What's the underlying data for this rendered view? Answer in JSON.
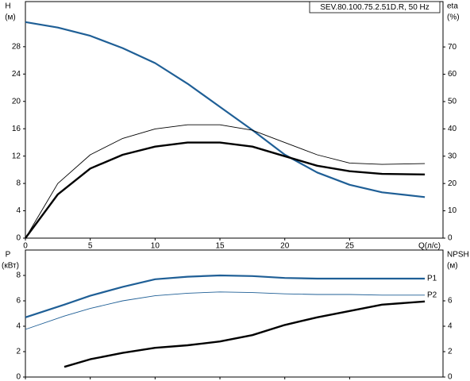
{
  "chart_data": [
    {
      "type": "line",
      "title": "SEV.80.100.75.2.51D.R, 50 Hz",
      "ylabel": "H",
      "yunit": "(м)",
      "y2label": "eta",
      "y2unit": "(%)",
      "xlabel": "Q(л/с)",
      "x": [
        0,
        2.5,
        5,
        7.5,
        10,
        12.5,
        15,
        17.5,
        20,
        22.5,
        25,
        27.5,
        30.8
      ],
      "xlim": [
        0,
        32.2
      ],
      "xticks": [
        0,
        5,
        10,
        15,
        20,
        25
      ],
      "ylim": [
        0,
        34.6
      ],
      "yticks": [
        0,
        4,
        8,
        12,
        16,
        20,
        24,
        28
      ],
      "y2lim": [
        0,
        86.6
      ],
      "y2ticks": [
        0,
        10,
        20,
        30,
        40,
        50,
        60,
        70
      ],
      "series": [
        {
          "color": "#1f5f96",
          "width": 2.2,
          "values": [
            31.6,
            30.8,
            29.6,
            27.8,
            25.6,
            22.6,
            19.2,
            15.8,
            12.2,
            9.6,
            7.8,
            6.7,
            6.0
          ]
        },
        {
          "color": "#000000",
          "width": 0.9,
          "axis": "y2",
          "values": [
            0,
            20,
            30.5,
            36.5,
            40,
            41.5,
            41.5,
            39.5,
            35,
            30.5,
            27.5,
            27,
            27.3
          ]
        },
        {
          "color": "#000000",
          "width": 2.4,
          "axis": "y2",
          "values": [
            0,
            16,
            25.5,
            30.5,
            33.5,
            35,
            35,
            33.5,
            30,
            26.5,
            24.5,
            23.5,
            23.3
          ]
        }
      ]
    },
    {
      "type": "line",
      "ylabel": "P",
      "yunit": "(кВт)",
      "y2label": "NPSH",
      "y2unit": "(м)",
      "x": [
        0,
        3,
        5,
        7.5,
        10,
        12.5,
        15,
        17.5,
        20,
        22.5,
        25,
        27.5,
        30.8
      ],
      "xlim": [
        0,
        32.2
      ],
      "xticks": [
        0,
        5,
        10,
        15,
        20,
        25
      ],
      "ylim": [
        0,
        10
      ],
      "yticks": [
        0,
        2,
        4,
        6,
        8
      ],
      "y2lim": [
        0,
        10
      ],
      "y2ticks": [
        0,
        2,
        4,
        6
      ],
      "series": [
        {
          "name": "P1",
          "color": "#1f5f96",
          "width": 2.2,
          "values": [
            4.7,
            5.7,
            6.4,
            7.1,
            7.7,
            7.9,
            8.0,
            7.95,
            7.8,
            7.75,
            7.75,
            7.75,
            7.75
          ]
        },
        {
          "name": "P2",
          "color": "#1f5f96",
          "width": 0.9,
          "values": [
            3.75,
            4.8,
            5.4,
            6.0,
            6.4,
            6.6,
            6.7,
            6.65,
            6.55,
            6.5,
            6.5,
            6.45,
            6.45
          ]
        },
        {
          "color": "#000000",
          "width": 2.4,
          "axis": "y2",
          "values": [
            null,
            0.8,
            1.4,
            1.9,
            2.3,
            2.5,
            2.8,
            3.3,
            4.1,
            4.7,
            5.2,
            5.7,
            5.95
          ]
        }
      ]
    }
  ]
}
